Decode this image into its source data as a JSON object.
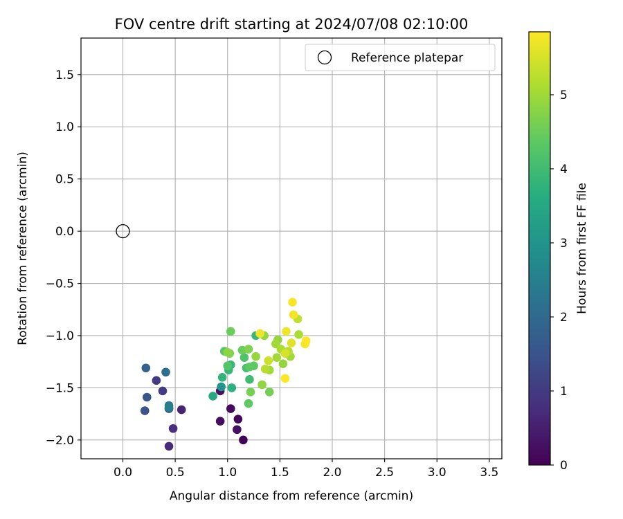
{
  "chart_data": {
    "type": "scatter",
    "title": "FOV centre drift starting at 2024/07/08 02:10:00",
    "xlabel": "Angular distance from reference (arcmin)",
    "ylabel": "Rotation from reference (arcmin)",
    "xlim": [
      -0.4,
      3.62
    ],
    "ylim": [
      -2.18,
      1.85
    ],
    "xticks": [
      0.0,
      0.5,
      1.0,
      1.5,
      2.0,
      2.5,
      3.0,
      3.5
    ],
    "xtick_labels": [
      "0.0",
      "0.5",
      "1.0",
      "1.5",
      "2.0",
      "2.5",
      "3.0",
      "3.5"
    ],
    "yticks": [
      1.5,
      1.0,
      0.5,
      0.0,
      -0.5,
      -1.0,
      -1.5,
      -2.0
    ],
    "ytick_labels": [
      "1.5",
      "1.0",
      "0.5",
      "0.0",
      "−0.5",
      "−1.0",
      "−1.5",
      "−2.0"
    ],
    "grid": true,
    "legend_position": "top-right",
    "legend_label": "Reference platepar",
    "reference_point": [
      0.0,
      0.0
    ],
    "colorbar": {
      "label": "Hours from first FF file",
      "range": [
        0,
        5.85
      ],
      "ticks": [
        0,
        1,
        2,
        3,
        4,
        5
      ],
      "tick_labels": [
        "0",
        "1",
        "2",
        "3",
        "4",
        "5"
      ],
      "colormap": "viridis"
    },
    "points": [
      [
        1.15,
        -2.0,
        0.05
      ],
      [
        1.1,
        -1.8,
        0.1
      ],
      [
        1.03,
        -1.7,
        0.15
      ],
      [
        0.93,
        -1.82,
        0.2
      ],
      [
        1.09,
        -1.9,
        0.25
      ],
      [
        0.93,
        -1.53,
        0.3
      ],
      [
        0.56,
        -1.71,
        0.6
      ],
      [
        0.44,
        -2.06,
        0.7
      ],
      [
        0.48,
        -1.89,
        0.8
      ],
      [
        0.32,
        -1.43,
        1.0
      ],
      [
        0.38,
        -1.53,
        1.05
      ],
      [
        0.44,
        -1.7,
        1.1
      ],
      [
        0.21,
        -1.72,
        1.5
      ],
      [
        0.23,
        -1.59,
        1.6
      ],
      [
        0.22,
        -1.31,
        1.8
      ],
      [
        0.41,
        -1.35,
        2.1
      ],
      [
        0.44,
        -1.67,
        2.3
      ],
      [
        0.44,
        -1.69,
        2.5
      ],
      [
        0.94,
        -1.49,
        3.0
      ],
      [
        0.86,
        -1.58,
        3.5
      ],
      [
        1.04,
        -1.5,
        3.7
      ],
      [
        0.95,
        -1.4,
        3.8
      ],
      [
        1.03,
        -1.28,
        3.85
      ],
      [
        1.01,
        -1.33,
        3.9
      ],
      [
        1.27,
        -1.0,
        3.9
      ],
      [
        1.21,
        -1.42,
        4.0
      ],
      [
        1.18,
        -1.31,
        4.1
      ],
      [
        1.16,
        -1.21,
        4.2
      ],
      [
        1.0,
        -1.29,
        4.25
      ],
      [
        0.97,
        -1.15,
        4.3
      ],
      [
        1.25,
        -1.29,
        4.35
      ],
      [
        1.21,
        -1.3,
        4.4
      ],
      [
        1.2,
        -1.65,
        4.4
      ],
      [
        1.03,
        -0.96,
        4.5
      ],
      [
        1.14,
        -1.14,
        4.5
      ],
      [
        1.22,
        -1.54,
        4.6
      ],
      [
        1.4,
        -1.54,
        4.6
      ],
      [
        1.02,
        -1.17,
        4.7
      ],
      [
        1.2,
        -1.13,
        4.7
      ],
      [
        1.0,
        -1.16,
        4.8
      ],
      [
        1.33,
        -1.47,
        4.85
      ],
      [
        1.27,
        -1.2,
        4.9
      ],
      [
        1.35,
        -1.0,
        4.9
      ],
      [
        1.48,
        -1.04,
        4.9
      ],
      [
        1.53,
        -1.27,
        4.9
      ],
      [
        1.46,
        -1.08,
        5.0
      ],
      [
        1.47,
        -1.21,
        5.0
      ],
      [
        1.4,
        -1.33,
        5.0
      ],
      [
        1.6,
        -1.2,
        5.0
      ],
      [
        1.68,
        -0.99,
        5.1
      ],
      [
        1.51,
        -1.13,
        5.1
      ],
      [
        1.58,
        -1.15,
        5.2
      ],
      [
        1.36,
        -1.32,
        5.2
      ],
      [
        1.67,
        -0.84,
        5.3
      ],
      [
        1.39,
        -1.24,
        5.4
      ],
      [
        1.55,
        -1.17,
        5.5
      ],
      [
        1.61,
        -1.07,
        5.6
      ],
      [
        1.31,
        -0.98,
        5.7
      ],
      [
        1.56,
        -0.96,
        5.7
      ],
      [
        1.63,
        -0.8,
        5.75
      ],
      [
        1.62,
        -0.68,
        5.8
      ],
      [
        1.74,
        -1.08,
        5.8
      ],
      [
        1.75,
        -1.05,
        5.85
      ],
      [
        1.55,
        -1.41,
        5.85
      ]
    ]
  }
}
